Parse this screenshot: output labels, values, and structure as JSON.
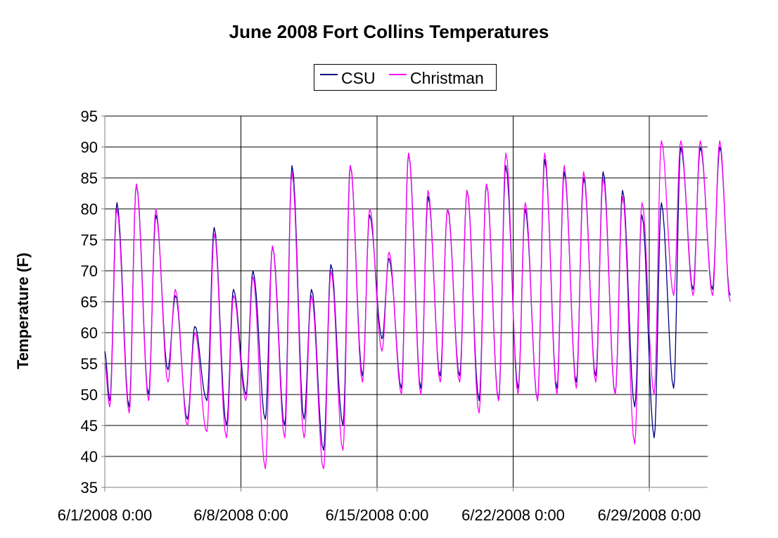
{
  "chart_data": {
    "type": "line",
    "title": "June 2008 Fort Collins Temperatures",
    "xlabel": "",
    "ylabel": "Temperature (F)",
    "ylim": [
      35,
      95
    ],
    "yticks": [
      35,
      40,
      45,
      50,
      55,
      60,
      65,
      70,
      75,
      80,
      85,
      90,
      95
    ],
    "xlim": [
      "6/1/2008 0:00",
      "7/3/2008 4:00"
    ],
    "xticks": [
      "6/1/2008 0:00",
      "6/8/2008 0:00",
      "6/15/2008 0:00",
      "6/22/2008 0:00",
      "6/29/2008 0:00"
    ],
    "grid": true,
    "legend_position": "top-center",
    "series": [
      {
        "name": "CSU",
        "color": "#000080",
        "x": [
          "6/1/2008 0:00",
          "6/1/2008 6:00",
          "6/1/2008 15:00",
          "6/2/2008 6:00",
          "6/2/2008 15:00",
          "6/3/2008 6:00",
          "6/3/2008 15:00",
          "6/4/2008 6:00",
          "6/4/2008 15:00",
          "6/5/2008 6:00",
          "6/5/2008 15:00",
          "6/6/2008 6:00",
          "6/6/2008 15:00",
          "6/7/2008 6:00",
          "6/7/2008 15:00",
          "6/8/2008 6:00",
          "6/8/2008 15:00",
          "6/9/2008 6:00",
          "6/9/2008 15:00",
          "6/10/2008 6:00",
          "6/10/2008 15:00",
          "6/11/2008 6:00",
          "6/11/2008 15:00",
          "6/12/2008 6:00",
          "6/12/2008 15:00",
          "6/13/2008 6:00",
          "6/13/2008 15:00",
          "6/14/2008 6:00",
          "6/14/2008 15:00",
          "6/15/2008 6:00",
          "6/15/2008 15:00",
          "6/16/2008 6:00",
          "6/16/2008 15:00",
          "6/17/2008 6:00",
          "6/17/2008 15:00",
          "6/18/2008 6:00",
          "6/18/2008 15:00",
          "6/19/2008 6:00",
          "6/19/2008 15:00",
          "6/20/2008 6:00",
          "6/20/2008 15:00",
          "6/21/2008 6:00",
          "6/21/2008 15:00",
          "6/22/2008 6:00",
          "6/22/2008 15:00",
          "6/23/2008 6:00",
          "6/23/2008 15:00",
          "6/24/2008 6:00",
          "6/24/2008 15:00",
          "6/25/2008 6:00",
          "6/25/2008 15:00",
          "6/26/2008 6:00",
          "6/26/2008 15:00",
          "6/27/2008 6:00",
          "6/27/2008 15:00",
          "6/28/2008 6:00",
          "6/28/2008 15:00",
          "6/29/2008 6:00",
          "6/29/2008 15:00",
          "6/30/2008 6:00",
          "6/30/2008 15:00",
          "7/1/2008 6:00",
          "7/1/2008 15:00",
          "7/2/2008 6:00",
          "7/2/2008 15:00",
          "7/3/2008 4:00"
        ],
        "values": [
          57,
          49,
          81,
          48,
          84,
          50,
          79,
          54,
          66,
          46,
          61,
          49,
          77,
          45,
          67,
          50,
          70,
          46,
          74,
          45,
          87,
          46,
          67,
          41,
          71,
          45,
          87,
          53,
          79,
          59,
          72,
          51,
          89,
          51,
          82,
          53,
          80,
          53,
          83,
          49,
          84,
          49,
          87,
          51,
          80,
          49,
          88,
          51,
          86,
          52,
          85,
          53,
          86,
          50,
          83,
          48,
          79,
          43,
          81,
          51,
          90,
          67,
          90,
          67,
          90,
          66
        ]
      },
      {
        "name": "Christman",
        "color": "#ff00ff",
        "x": [
          "6/1/2008 0:00",
          "6/1/2008 6:00",
          "6/1/2008 15:00",
          "6/2/2008 6:00",
          "6/2/2008 15:00",
          "6/3/2008 6:00",
          "6/3/2008 15:00",
          "6/4/2008 6:00",
          "6/4/2008 15:00",
          "6/5/2008 6:00",
          "6/5/2008 15:00",
          "6/6/2008 6:00",
          "6/6/2008 15:00",
          "6/7/2008 6:00",
          "6/7/2008 15:00",
          "6/8/2008 6:00",
          "6/8/2008 15:00",
          "6/9/2008 6:00",
          "6/9/2008 15:00",
          "6/10/2008 6:00",
          "6/10/2008 15:00",
          "6/11/2008 6:00",
          "6/11/2008 15:00",
          "6/12/2008 6:00",
          "6/12/2008 15:00",
          "6/13/2008 6:00",
          "6/13/2008 15:00",
          "6/14/2008 6:00",
          "6/14/2008 15:00",
          "6/15/2008 6:00",
          "6/15/2008 15:00",
          "6/16/2008 6:00",
          "6/16/2008 15:00",
          "6/17/2008 6:00",
          "6/17/2008 15:00",
          "6/18/2008 6:00",
          "6/18/2008 15:00",
          "6/19/2008 6:00",
          "6/19/2008 15:00",
          "6/20/2008 6:00",
          "6/20/2008 15:00",
          "6/21/2008 6:00",
          "6/21/2008 15:00",
          "6/22/2008 6:00",
          "6/22/2008 15:00",
          "6/23/2008 6:00",
          "6/23/2008 15:00",
          "6/24/2008 6:00",
          "6/24/2008 15:00",
          "6/25/2008 6:00",
          "6/25/2008 15:00",
          "6/26/2008 6:00",
          "6/26/2008 15:00",
          "6/27/2008 6:00",
          "6/27/2008 15:00",
          "6/28/2008 6:00",
          "6/28/2008 15:00",
          "6/29/2008 6:00",
          "6/29/2008 15:00",
          "6/30/2008 6:00",
          "6/30/2008 15:00",
          "7/1/2008 6:00",
          "7/1/2008 15:00",
          "7/2/2008 6:00",
          "7/2/2008 15:00",
          "7/3/2008 4:00"
        ],
        "values": [
          55,
          48,
          80,
          47,
          84,
          49,
          80,
          52,
          67,
          45,
          60,
          44,
          76,
          43,
          66,
          49,
          69,
          38,
          74,
          43,
          86,
          43,
          66,
          38,
          70,
          41,
          87,
          52,
          80,
          57,
          73,
          50,
          89,
          50,
          83,
          52,
          80,
          52,
          83,
          47,
          84,
          49,
          89,
          50,
          81,
          49,
          89,
          50,
          87,
          51,
          86,
          52,
          85,
          50,
          82,
          42,
          81,
          50,
          91,
          66,
          91,
          66,
          91,
          66,
          91,
          65
        ]
      }
    ]
  }
}
